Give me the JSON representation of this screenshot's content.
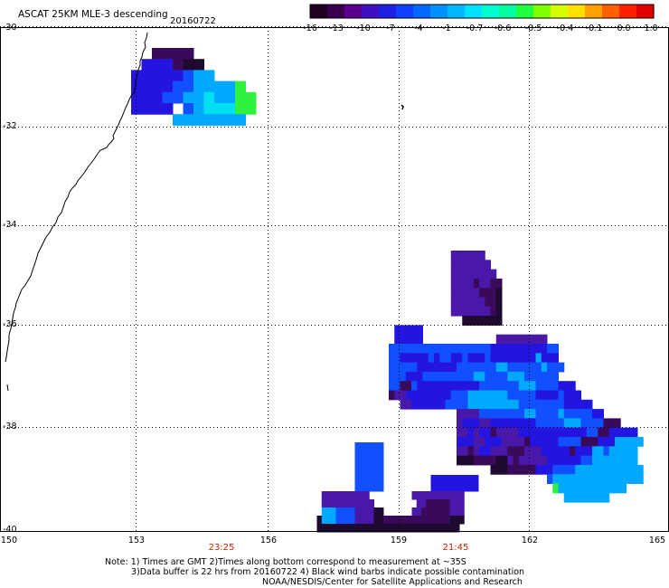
{
  "title": "ASCAT 25KM MLE-3 descending",
  "date": "20160722",
  "colorbar": {
    "colors": [
      "#200020",
      "#3a0050",
      "#5a0090",
      "#4010c0",
      "#2020e0",
      "#1040ff",
      "#0068ff",
      "#0090ff",
      "#00b8ff",
      "#00e0ff",
      "#00ffd0",
      "#00ffa0",
      "#20ff40",
      "#80ff00",
      "#d8ff00",
      "#ffe000",
      "#ffa000",
      "#ff6000",
      "#ff2000",
      "#e00000"
    ],
    "ticks": [
      "-16",
      "-13",
      "-10",
      "-7",
      "-4",
      "-1",
      "-0.7",
      "-0.6",
      "-0.5",
      "-0.4",
      "-0.1",
      "0.0",
      "1.0"
    ]
  },
  "lat_labels": [
    "-30",
    "-32",
    "-34",
    "-36",
    "-38",
    "-40"
  ],
  "lon_labels": [
    "150",
    "153",
    "156",
    "159",
    "162",
    "165"
  ],
  "time_labels": [
    "23:25",
    "21:45"
  ],
  "notes": [
    "Note: 1) Times are GMT 2)Times along bottom correspond to measurement at ~35S",
    "3)Data buffer is 22 hrs from 20160722 4) Black wind barbs indicate possible contamination",
    "NOAA/NESDIS/Center for Satellite Applications and Research"
  ],
  "swaths": [
    {
      "name": "swath-north-west",
      "rows": [
        "....KKKK.......",
        "...BBBKNN......",
        "..BBBBBLCC.....",
        "..BBBBLLCCCCG..",
        "..BBBLLCCDCCGG.",
        "..BBBB.LCDDDGG.",
        "......CCCCCCC.."
      ]
    },
    {
      "name": "swath-east",
      "rows": [
        "...........PPPPPP.............................",
        "...........PPPPPPP............................",
        "...........PPPPPPPP...........................",
        "...........PPPPKPPKK..........................",
        "...........PPPPPKKKN..........................",
        "...........PPPPPPKKN..........................",
        "...........PPPPPPPKN..........................",
        ".............NNNNNNN..........................",
        ".BBBBB.........................................",
        ".BBBBB.............PPPPPPPPP...................",
        "LLLLLLLLLLLLLLLLLLBBBBBBBBBBLL...................",
        "LLBBBBBLBLLBBLBBBLBBBBBBBBCBBB.................",
        "LLLLLBBBBBBBLLLLLLLCCLLLLLLCLLL...............",
        "LLLBBBLLLLLLLLLCCLLLLCCCLLLLLL.................",
        "LLKKLBBBBBBBBBBBLLLLLLLCCCLLLLBBB.............",
        "KPPBBBBBBBBLLLCCCCCCCLLLLLBBBBLBBB...........",
        "..PPBBBBBBLLLLCCCCCCCCCLLLLLLLLBBBBB.........",
        "............PPPPLLLLLLLLCCLLLLCLLLLLBB........",
        "............PBBBPPBBBBBBBBLLLLLCCCLLLLKKK.....",
        "............PPBPBBKPPPPBBBBBBBBBBBBLLKKBBBBB..",
        "............BBBPPBBBPPPPKBBBBBLLLLKKKBBBCCCCC.",
        "............PPKPBBPPPKKKPPPBBBBBKBBBCCLCCCCC..",
        "............NNNKKKKNNPKPPPPPBBBBBBLLCCCCCCCC..",
        "..................NNNKKKKKBBBLLLLCCCCCCCCCCCC.",
        "............................LCCCCCCCCCCCCCCCC.",
        ".............................GCCCCCCCCCCCC...",
        "...............................CCCCCCCC......."
      ]
    },
    {
      "name": "swath-south",
      "rows": [
        "....................................",
        "..........LLLLLL....................",
        "..........LLLLLL....................",
        "..........LLLLLL....................",
        "..........LLLLLL....................",
        "..........LLLLLL..........BBBBBBBBBB",
        "..........LLLLLL..........BBBBBBBBBB",
        "...PPPPPPPPPP.........PPPPPPPPPPP...",
        "...PPPPPPPPPPP.........PPKKKKKPPP...",
        "...CCCLLLLPPPPNN......PPKKKKKKPPP...",
        "..NCCCLLLLPPPPNNKKKKKKKKKKKKKKNNN..",
        "..NNNNNNNNNNNNNNNNNNNNNNNNNNNNNN...."
      ]
    }
  ]
}
